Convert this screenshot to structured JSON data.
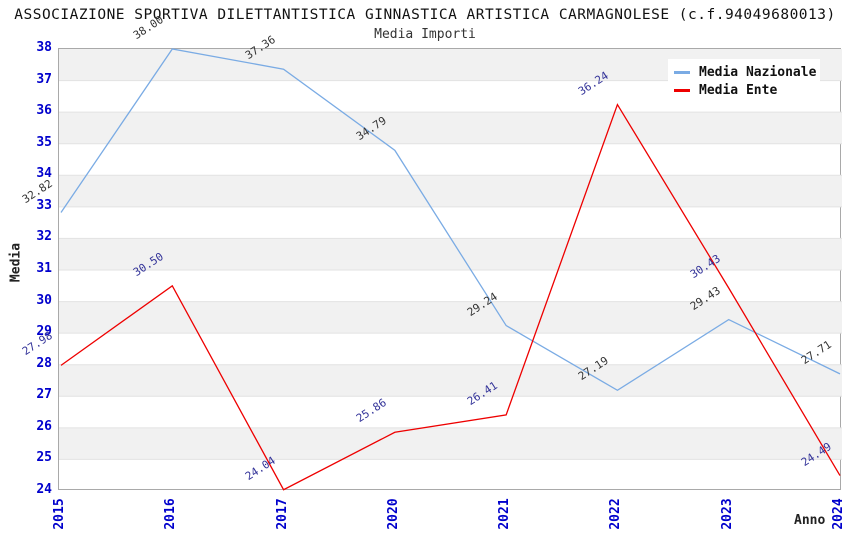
{
  "header": {
    "title": "ASSOCIAZIONE SPORTIVA DILETTANTISTICA GINNASTICA ARTISTICA CARMAGNOLESE (c.f.94049680013)",
    "subtitle": "Media Importi"
  },
  "colors": {
    "nazionale_line": "#7aabe4",
    "ente_line": "#ee0000",
    "nazionale_label": "#333333",
    "ente_label": "#333399",
    "tick_text": "#0000cc",
    "stripe": "#f1f1f1",
    "gridline": "#e2e2e2",
    "plot_border": "#a9a9a9"
  },
  "chart_data": {
    "type": "line",
    "title": "ASSOCIAZIONE SPORTIVA DILETTANTISTICA GINNASTICA ARTISTICA CARMAGNOLESE (c.f.94049680013)",
    "subtitle": "Media Importi",
    "xlabel": "Anno",
    "ylabel": "Media",
    "categories": [
      "2015",
      "2016",
      "2017",
      "2020",
      "2021",
      "2022",
      "2023",
      "2024"
    ],
    "series": [
      {
        "name": "Media Nazionale",
        "color": "#7aabe4",
        "label_color": "#333333",
        "values": [
          32.82,
          38.0,
          37.36,
          34.79,
          29.24,
          27.19,
          29.43,
          27.71
        ]
      },
      {
        "name": "Media Ente",
        "color": "#ee0000",
        "label_color": "#333399",
        "values": [
          27.98,
          30.5,
          24.04,
          25.86,
          26.41,
          36.24,
          30.43,
          24.49
        ]
      }
    ],
    "ylim": [
      24,
      38
    ],
    "ytick_step": 1,
    "grid": true,
    "striped_bands": true,
    "legend_position": "top-right",
    "point_labels": "2-decimals"
  }
}
